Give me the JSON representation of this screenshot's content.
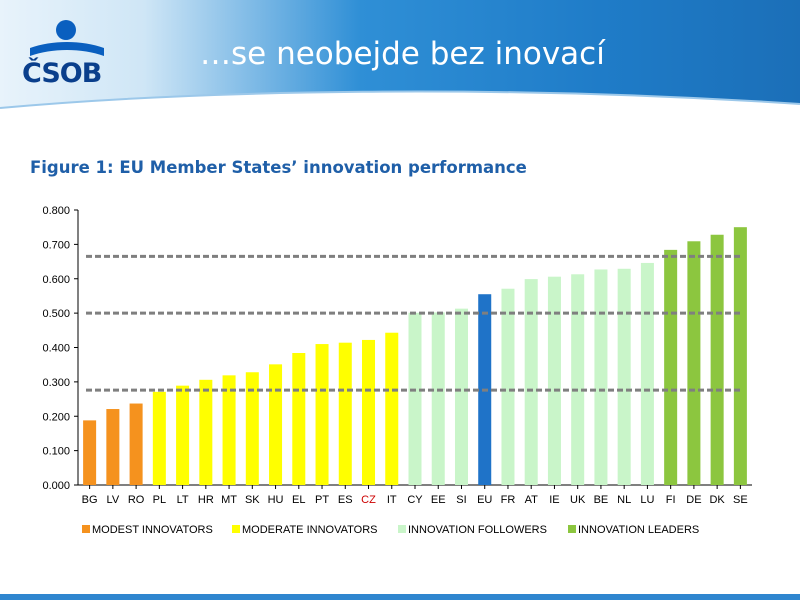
{
  "slide": {
    "logo_text": "ČSOB",
    "title": "…se neobejde bez inovací",
    "figure_title": "Figure 1: EU Member States’ innovation performance"
  },
  "colors": {
    "modest": "#f5921e",
    "moderate": "#ffff00",
    "followers": "#c9f5c9",
    "leaders": "#8cc63f",
    "eu": "#1f73c8",
    "highlight_label": "#cc0000"
  },
  "chart_data": {
    "type": "bar",
    "categories": [
      "BG",
      "LV",
      "RO",
      "PL",
      "LT",
      "HR",
      "MT",
      "SK",
      "HU",
      "EL",
      "PT",
      "ES",
      "CZ",
      "IT",
      "CY",
      "EE",
      "SI",
      "EU",
      "FR",
      "AT",
      "IE",
      "UK",
      "BE",
      "NL",
      "LU",
      "FI",
      "DE",
      "DK",
      "SE"
    ],
    "values": [
      0.188,
      0.221,
      0.237,
      0.271,
      0.289,
      0.306,
      0.319,
      0.328,
      0.351,
      0.384,
      0.41,
      0.414,
      0.422,
      0.443,
      0.501,
      0.502,
      0.513,
      0.555,
      0.571,
      0.599,
      0.606,
      0.613,
      0.627,
      0.629,
      0.646,
      0.684,
      0.709,
      0.728,
      0.75
    ],
    "groups": [
      "modest",
      "modest",
      "modest",
      "moderate",
      "moderate",
      "moderate",
      "moderate",
      "moderate",
      "moderate",
      "moderate",
      "moderate",
      "moderate",
      "moderate",
      "moderate",
      "followers",
      "followers",
      "followers",
      "eu",
      "followers",
      "followers",
      "followers",
      "followers",
      "followers",
      "followers",
      "followers",
      "leaders",
      "leaders",
      "leaders",
      "leaders"
    ],
    "highlight_category": "CZ",
    "y_ticks": [
      "0.000",
      "0.100",
      "0.200",
      "0.300",
      "0.400",
      "0.500",
      "0.600",
      "0.700",
      "0.800"
    ],
    "ylim": [
      0,
      0.8
    ],
    "threshold_lines": [
      0.276,
      0.5,
      0.665
    ],
    "legend": [
      {
        "key": "modest",
        "label": "MODEST INNOVATORS"
      },
      {
        "key": "moderate",
        "label": "MODERATE INNOVATORS"
      },
      {
        "key": "followers",
        "label": "INNOVATION FOLLOWERS"
      },
      {
        "key": "leaders",
        "label": "INNOVATION LEADERS"
      }
    ],
    "legend_position": "bottom",
    "grid": false
  }
}
